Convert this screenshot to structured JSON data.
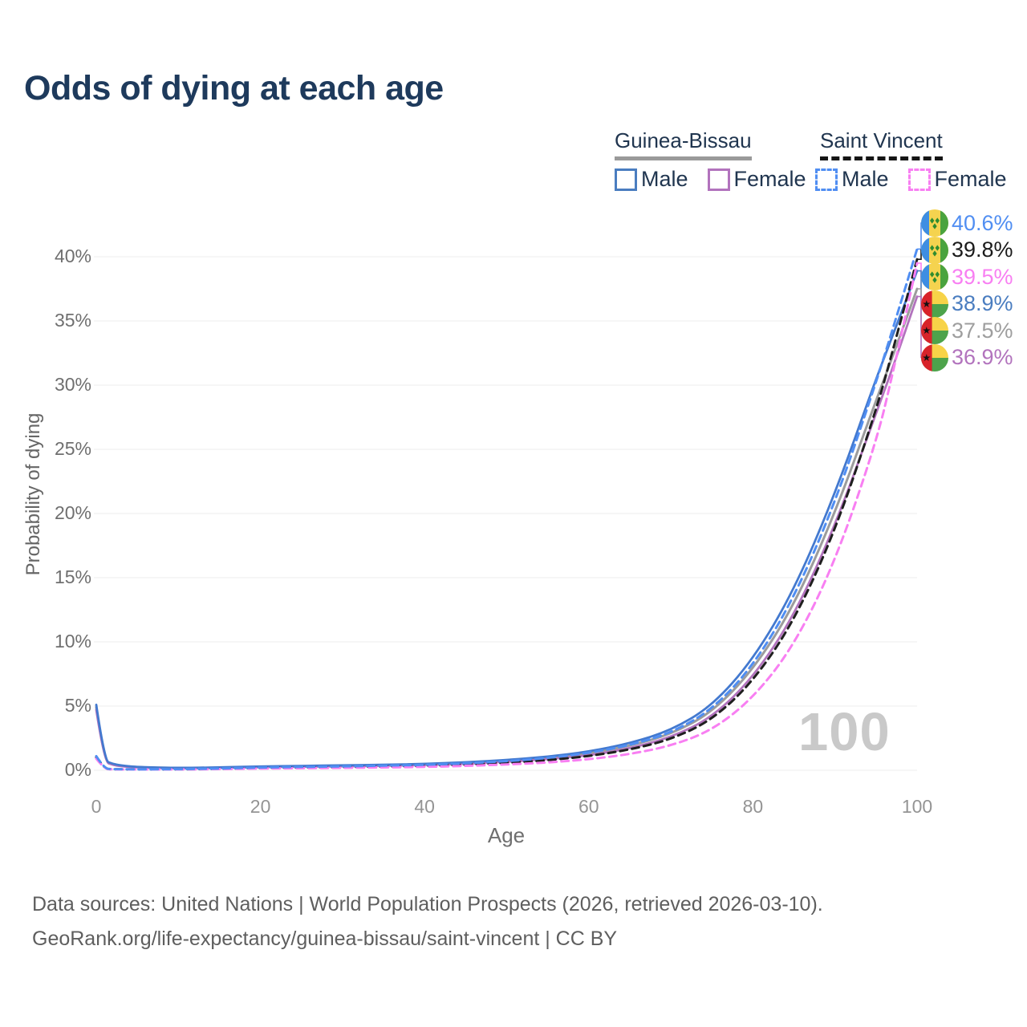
{
  "title": "Odds of dying at each age",
  "legend": {
    "groups": [
      {
        "name": "Guinea-Bissau",
        "line_style": "solid",
        "underline_color": "#9a9a9a",
        "items": [
          {
            "label": "Male",
            "color": "#4a7dc0"
          },
          {
            "label": "Female",
            "color": "#b273bd"
          }
        ]
      },
      {
        "name": "Saint Vincent",
        "line_style": "dashed",
        "underline_color": "#151515",
        "items": [
          {
            "label": "Male",
            "color": "#508ef2"
          },
          {
            "label": "Female",
            "color": "#f87ff2"
          }
        ]
      }
    ]
  },
  "watermark": "100",
  "footer": {
    "line1": "Data sources: United Nations | World Population Prospects (2026, retrieved 2026-03-10).",
    "line2": "GeoRank.org/life-expectancy/guinea-bissau/saint-vincent | CC BY"
  },
  "chart_data": {
    "type": "line",
    "title": "Odds of dying at each age",
    "xlabel": "Age",
    "ylabel": "Probability of dying",
    "xlim": [
      0,
      100
    ],
    "ylim_percent": [
      0,
      42
    ],
    "xticks": [
      0,
      20,
      40,
      60,
      80,
      100
    ],
    "yticks": [
      "0%",
      "5%",
      "10%",
      "15%",
      "20%",
      "25%",
      "30%",
      "35%",
      "40%"
    ],
    "grid": "horizontal",
    "legend_position": "top-right",
    "x": [
      0,
      1,
      2,
      3,
      5,
      10,
      15,
      20,
      25,
      30,
      35,
      40,
      45,
      50,
      55,
      60,
      65,
      70,
      75,
      80,
      85,
      90,
      95,
      97,
      100
    ],
    "series": [
      {
        "name": "Guinea-Bissau",
        "sex": "both",
        "color": "#9c9c9c",
        "dash": "solid",
        "width": 3,
        "values": [
          4.9,
          0.7,
          0.46,
          0.34,
          0.23,
          0.17,
          0.2,
          0.27,
          0.3,
          0.34,
          0.39,
          0.45,
          0.56,
          0.72,
          0.95,
          1.3,
          1.9,
          2.8,
          4.5,
          7.8,
          12.8,
          20.0,
          28.8,
          32.2,
          37.5
        ]
      },
      {
        "name": "Guinea-Bissau Female",
        "sex": "female",
        "color": "#b273bd",
        "dash": "solid",
        "width": 2.8,
        "values": [
          4.7,
          0.65,
          0.42,
          0.31,
          0.21,
          0.15,
          0.18,
          0.24,
          0.27,
          0.3,
          0.35,
          0.4,
          0.5,
          0.65,
          0.85,
          1.15,
          1.7,
          2.55,
          4.1,
          7.2,
          12.0,
          19.0,
          27.8,
          31.3,
          36.9
        ]
      },
      {
        "name": "Guinea-Bissau Male",
        "sex": "male",
        "color": "#4379cf",
        "dash": "solid",
        "width": 2.8,
        "values": [
          5.1,
          0.75,
          0.5,
          0.38,
          0.25,
          0.18,
          0.22,
          0.3,
          0.34,
          0.38,
          0.43,
          0.5,
          0.62,
          0.8,
          1.05,
          1.45,
          2.1,
          3.1,
          5.0,
          8.6,
          14.0,
          21.5,
          30.5,
          33.8,
          38.9
        ]
      },
      {
        "name": "Saint Vincent",
        "sex": "both",
        "color": "#1f1f1f",
        "dash": "dashed",
        "width": 3,
        "values": [
          1.0,
          0.11,
          0.08,
          0.07,
          0.06,
          0.07,
          0.11,
          0.18,
          0.21,
          0.24,
          0.29,
          0.34,
          0.44,
          0.58,
          0.78,
          1.1,
          1.6,
          2.4,
          3.9,
          6.9,
          11.6,
          18.6,
          28.0,
          32.6,
          39.8
        ]
      },
      {
        "name": "Saint Vincent Female",
        "sex": "female",
        "color": "#f87ff2",
        "dash": "dashed",
        "width": 3,
        "values": [
          0.9,
          0.1,
          0.07,
          0.06,
          0.06,
          0.06,
          0.09,
          0.14,
          0.16,
          0.19,
          0.22,
          0.26,
          0.34,
          0.45,
          0.6,
          0.85,
          1.25,
          1.9,
          3.1,
          5.6,
          9.7,
          16.2,
          25.5,
          30.8,
          39.5
        ]
      },
      {
        "name": "Saint Vincent Male",
        "sex": "male",
        "color": "#508ef2",
        "dash": "dashed",
        "width": 3,
        "values": [
          1.1,
          0.12,
          0.09,
          0.08,
          0.07,
          0.08,
          0.13,
          0.22,
          0.26,
          0.3,
          0.36,
          0.42,
          0.54,
          0.7,
          0.95,
          1.35,
          1.95,
          2.9,
          4.7,
          8.1,
          13.4,
          20.8,
          30.2,
          34.3,
          40.6
        ]
      }
    ],
    "end_labels": [
      {
        "label": "40.6%",
        "value": 40.6,
        "series": "Saint Vincent Male",
        "flag": "saint-vincent",
        "color": "#508ef2"
      },
      {
        "label": "39.8%",
        "value": 39.8,
        "series": "Saint Vincent",
        "flag": "saint-vincent",
        "color": "#1b1b1b"
      },
      {
        "label": "39.5%",
        "value": 39.5,
        "series": "Saint Vincent Female",
        "flag": "saint-vincent",
        "color": "#f87ff2"
      },
      {
        "label": "38.9%",
        "value": 38.9,
        "series": "Guinea-Bissau Male",
        "flag": "guinea-bissau",
        "color": "#4a7dc0"
      },
      {
        "label": "37.5%",
        "value": 37.5,
        "series": "Guinea-Bissau",
        "flag": "guinea-bissau",
        "color": "#9e9e9e"
      },
      {
        "label": "36.9%",
        "value": 36.9,
        "series": "Guinea-Bissau Female",
        "flag": "guinea-bissau",
        "color": "#b273bd"
      }
    ],
    "flag_colors": {
      "saint-vincent": {
        "blue": "#3e8ee2",
        "yellow": "#f5d34f",
        "green": "#4aa33e"
      },
      "guinea-bissau": {
        "red": "#d8232a",
        "yellow": "#f7d348",
        "green": "#4da34b",
        "star": "#111111"
      }
    }
  }
}
